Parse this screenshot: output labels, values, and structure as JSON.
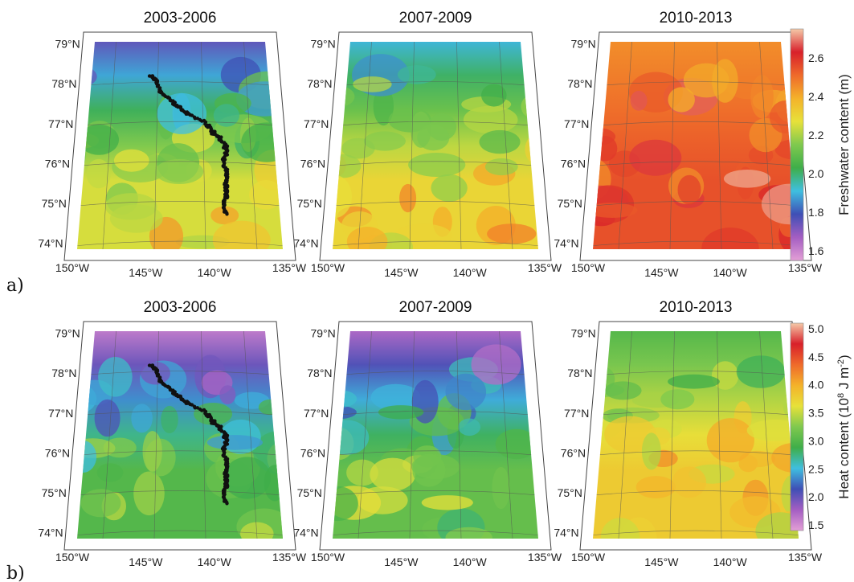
{
  "chart_data": {
    "type": "heatmap",
    "rows": [
      {
        "label": "a)",
        "variable": "Freshwater content (m)",
        "colorbar": {
          "title": "Freshwater content (m)",
          "ticks": [
            "2.6",
            "2.4",
            "2.2",
            "2.0",
            "1.8",
            "1.6"
          ],
          "range": [
            1.55,
            2.75
          ]
        },
        "panels": [
          {
            "title": "2003-2006",
            "mean_value": 2.1,
            "north_value": 1.75,
            "south_value": 2.25,
            "track": true
          },
          {
            "title": "2007-2009",
            "mean_value": 2.25,
            "north_value": 1.9,
            "south_value": 2.3,
            "track": false
          },
          {
            "title": "2010-2013",
            "mean_value": 2.5,
            "north_value": 2.45,
            "south_value": 2.55,
            "track": false
          }
        ]
      },
      {
        "label": "b)",
        "variable": "Heat content (10^8 J m^-2)",
        "colorbar": {
          "title": "Heat content (10",
          "title_exp": "8",
          "title_tail": " J m",
          "title_exp2": "-2",
          "title_close": ")",
          "ticks": [
            "5.0",
            "4.5",
            "4.0",
            "3.5",
            "3.0",
            "2.5",
            "2.0",
            "1.5"
          ],
          "range": [
            1.4,
            5.1
          ]
        },
        "panels": [
          {
            "title": "2003-2006",
            "mean_value": 2.8,
            "north_value": 1.6,
            "south_value": 3.0,
            "track": true
          },
          {
            "title": "2007-2009",
            "mean_value": 3.0,
            "north_value": 1.7,
            "south_value": 3.1,
            "track": false
          },
          {
            "title": "2010-2013",
            "mean_value": 3.4,
            "north_value": 3.0,
            "south_value": 3.8,
            "track": false
          }
        ]
      }
    ],
    "lat_ticks": [
      "79°N",
      "78°N",
      "77°N",
      "76°N",
      "75°N",
      "74°N"
    ],
    "lon_ticks": [
      "150°W",
      "145°W",
      "140°W",
      "135°W"
    ],
    "grid": true,
    "legend": "right"
  },
  "colors": {
    "scale": [
      "#e39fd6",
      "#a45ec2",
      "#3f4fb5",
      "#3fbfe0",
      "#3fae49",
      "#7fc94e",
      "#e7e13a",
      "#f4b22a",
      "#ef6a2a",
      "#d8202a",
      "#f5c9a8"
    ],
    "track": "#111111",
    "frame": "#444444"
  }
}
